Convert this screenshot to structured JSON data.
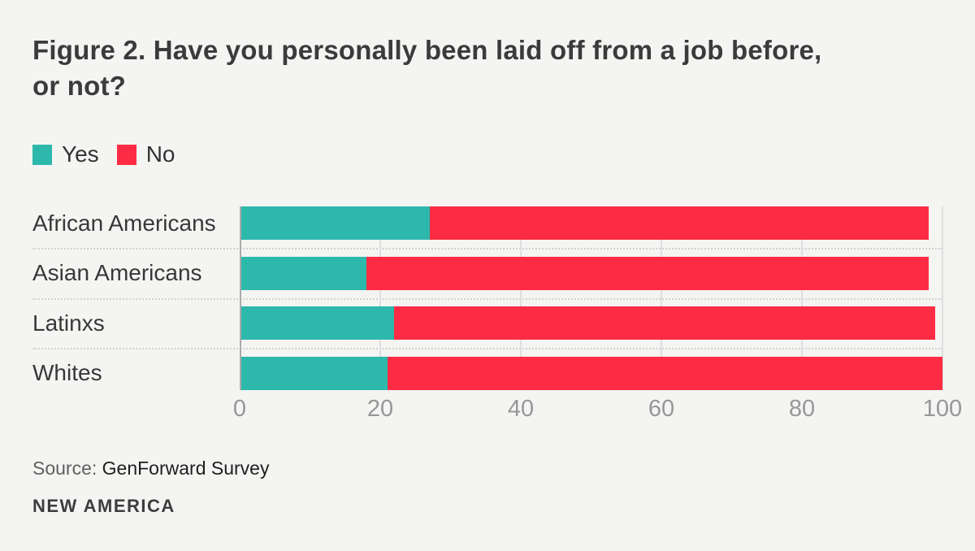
{
  "title": "Figure 2. Have you personally been laid off from a job before, or not?",
  "chart_data": {
    "type": "bar",
    "orientation": "horizontal",
    "stacked": true,
    "title": "Figure 2. Have you personally been laid off from a job before, or not?",
    "categories": [
      "African Americans",
      "Asian Americans",
      "Latinxs",
      "Whites"
    ],
    "series": [
      {
        "name": "Yes",
        "color": "#2db8ac",
        "values": [
          27,
          18,
          22,
          21
        ]
      },
      {
        "name": "No",
        "color": "#fd2c44",
        "values": [
          71,
          80,
          77,
          79
        ]
      }
    ],
    "xlim": [
      0,
      100
    ],
    "xticks": [
      "0",
      "20",
      "40",
      "60",
      "80",
      "100"
    ],
    "grid": true,
    "legend_position": "top-left"
  },
  "legend": {
    "yes_label": "Yes",
    "no_label": "No"
  },
  "source": {
    "prefix": "Source: ",
    "text": "GenForward Survey"
  },
  "footer": {
    "brand": "NEW AMERICA"
  },
  "colors": {
    "background": "#f4f4f2",
    "yes": "#2db8ac",
    "no": "#fd2c44",
    "title_text": "#3b3b3b",
    "tick_text": "#979797"
  }
}
